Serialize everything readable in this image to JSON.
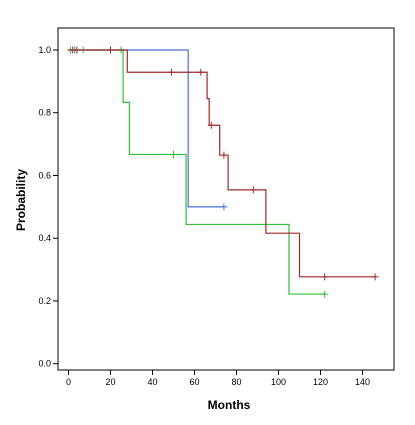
{
  "chart_data": {
    "type": "line",
    "step": true,
    "xlabel": "Months",
    "ylabel": "Probability",
    "xlim": [
      -5,
      155
    ],
    "ylim": [
      -0.02,
      1.07
    ],
    "x_ticks": [
      0,
      20,
      40,
      60,
      80,
      100,
      120,
      140
    ],
    "y_ticks": [
      0.0,
      0.2,
      0.4,
      0.6,
      0.8,
      1.0
    ],
    "y_tick_labels": [
      "0.0",
      "0.2",
      "0.4",
      "0.6",
      "0.8",
      "1.0"
    ],
    "grid": false,
    "series": [
      {
        "color": "#4a6fd6",
        "steps": [
          [
            0,
            1.0
          ],
          [
            57,
            0.5
          ],
          [
            74,
            0.5
          ]
        ],
        "censored": [
          [
            3,
            1.0
          ],
          [
            20,
            1.0
          ],
          [
            74,
            0.5
          ]
        ]
      },
      {
        "color": "#2fbf3a",
        "steps": [
          [
            0,
            1.0
          ],
          [
            26,
            0.833
          ],
          [
            29,
            0.667
          ],
          [
            56,
            0.444
          ],
          [
            105,
            0.222
          ],
          [
            122,
            0.222
          ]
        ],
        "censored": [
          [
            1,
            1.0
          ],
          [
            7,
            1.0
          ],
          [
            20,
            1.0
          ],
          [
            25,
            1.0
          ],
          [
            50,
            0.667
          ],
          [
            122,
            0.222
          ]
        ]
      },
      {
        "color": "#a12a2a",
        "steps": [
          [
            0,
            1.0
          ],
          [
            28,
            0.929
          ],
          [
            66,
            0.845
          ],
          [
            67,
            0.76
          ],
          [
            72,
            0.665
          ],
          [
            76,
            0.554
          ],
          [
            94,
            0.416
          ],
          [
            110,
            0.277
          ],
          [
            146,
            0.277
          ]
        ],
        "censored": [
          [
            2,
            1.0
          ],
          [
            4,
            1.0
          ],
          [
            20,
            1.0
          ],
          [
            49,
            0.929
          ],
          [
            63,
            0.929
          ],
          [
            68,
            0.76
          ],
          [
            74,
            0.665
          ],
          [
            88,
            0.554
          ],
          [
            122,
            0.277
          ],
          [
            146,
            0.277
          ]
        ]
      }
    ]
  }
}
